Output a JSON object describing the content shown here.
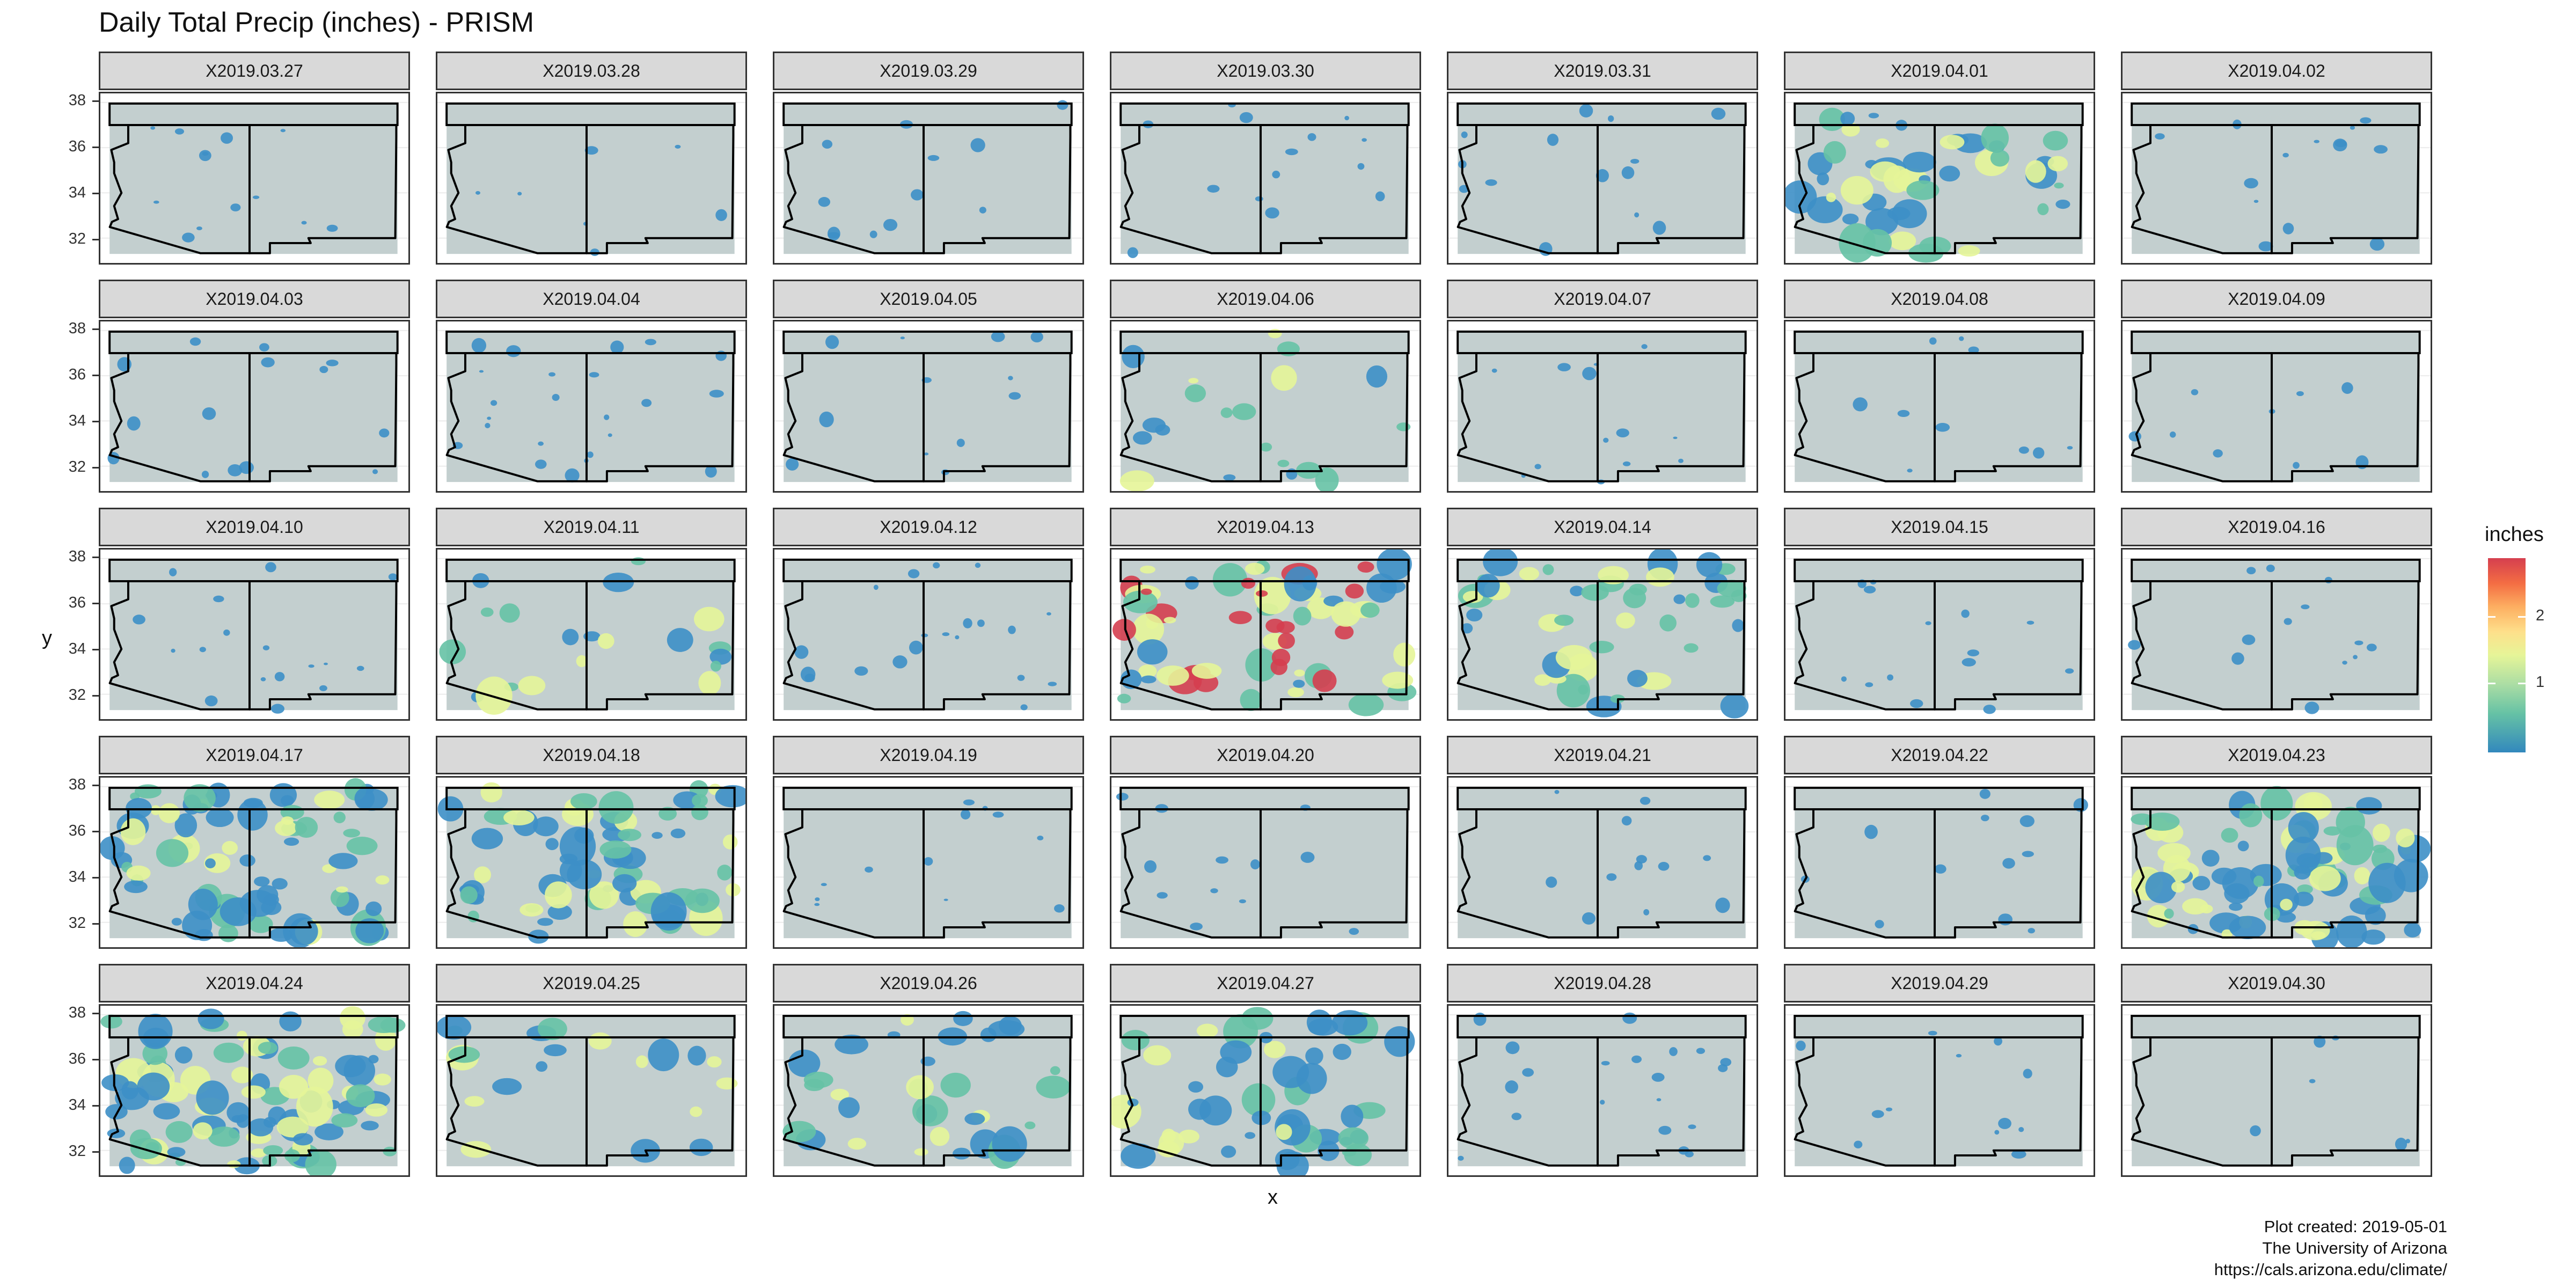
{
  "title": "Daily Total Precip (inches) - PRISM",
  "axes": {
    "xlabel": "x",
    "ylabel": "y",
    "y_ticks": [
      "38",
      "36",
      "34",
      "32"
    ]
  },
  "legend": {
    "title": "inches",
    "ticks": [
      "2",
      "1"
    ]
  },
  "caption": {
    "line1": "Plot created: 2019-05-01",
    "line2": "The University of Arizona",
    "line3": "https://cals.arizona.edu/climate/"
  },
  "colors": {
    "background_fill": "#c3cfcf",
    "light_precip": "#3d8fc6",
    "medium_precip": "#66c2a5",
    "heavy_precip": "#e6f598",
    "peak_precip": "#d53e4f",
    "state_outline": "#000000"
  },
  "chart_data": {
    "type": "heatmap",
    "title": "Daily Total Precip (inches) - PRISM",
    "xlabel": "x",
    "ylabel": "y",
    "ylim": [
      31,
      38
    ],
    "grid": true,
    "legend_placement": "right",
    "colorbar": {
      "title": "inches",
      "range": [
        0,
        2.8
      ],
      "ticks": [
        1,
        2
      ],
      "palette": "Spectral"
    },
    "facets": [
      {
        "label": "X2019.03.27",
        "intensity": "light",
        "coverage": 0.05
      },
      {
        "label": "X2019.03.28",
        "intensity": "light",
        "coverage": 0.01
      },
      {
        "label": "X2019.03.29",
        "intensity": "light",
        "coverage": 0.04
      },
      {
        "label": "X2019.03.30",
        "intensity": "light",
        "coverage": 0.06
      },
      {
        "label": "X2019.03.31",
        "intensity": "light",
        "coverage": 0.06
      },
      {
        "label": "X2019.04.01",
        "intensity": "moderate",
        "coverage": 0.3
      },
      {
        "label": "X2019.04.02",
        "intensity": "light",
        "coverage": 0.06
      },
      {
        "label": "X2019.04.03",
        "intensity": "light",
        "coverage": 0.06
      },
      {
        "label": "X2019.04.04",
        "intensity": "light",
        "coverage": 0.12
      },
      {
        "label": "X2019.04.05",
        "intensity": "light",
        "coverage": 0.04
      },
      {
        "label": "X2019.04.06",
        "intensity": "moderate",
        "coverage": 0.1
      },
      {
        "label": "X2019.04.07",
        "intensity": "light",
        "coverage": 0.05
      },
      {
        "label": "X2019.04.08",
        "intensity": "light",
        "coverage": 0.03
      },
      {
        "label": "X2019.04.09",
        "intensity": "light",
        "coverage": 0.02
      },
      {
        "label": "X2019.04.10",
        "intensity": "light",
        "coverage": 0.08
      },
      {
        "label": "X2019.04.11",
        "intensity": "moderate",
        "coverage": 0.1
      },
      {
        "label": "X2019.04.12",
        "intensity": "light",
        "coverage": 0.1
      },
      {
        "label": "X2019.04.13",
        "intensity": "heavy",
        "coverage": 0.4
      },
      {
        "label": "X2019.04.14",
        "intensity": "moderate",
        "coverage": 0.28
      },
      {
        "label": "X2019.04.15",
        "intensity": "light",
        "coverage": 0.06
      },
      {
        "label": "X2019.04.16",
        "intensity": "light",
        "coverage": 0.05
      },
      {
        "label": "X2019.04.17",
        "intensity": "moderate",
        "coverage": 0.5
      },
      {
        "label": "X2019.04.18",
        "intensity": "moderate",
        "coverage": 0.45
      },
      {
        "label": "X2019.04.19",
        "intensity": "light",
        "coverage": 0.04
      },
      {
        "label": "X2019.04.20",
        "intensity": "light",
        "coverage": 0.04
      },
      {
        "label": "X2019.04.21",
        "intensity": "light",
        "coverage": 0.04
      },
      {
        "label": "X2019.04.22",
        "intensity": "light",
        "coverage": 0.04
      },
      {
        "label": "X2019.04.23",
        "intensity": "moderate",
        "coverage": 0.55
      },
      {
        "label": "X2019.04.24",
        "intensity": "moderate",
        "coverage": 0.6
      },
      {
        "label": "X2019.04.25",
        "intensity": "moderate",
        "coverage": 0.1
      },
      {
        "label": "X2019.04.26",
        "intensity": "moderate",
        "coverage": 0.2
      },
      {
        "label": "X2019.04.27",
        "intensity": "moderate",
        "coverage": 0.3
      },
      {
        "label": "X2019.04.28",
        "intensity": "light",
        "coverage": 0.1
      },
      {
        "label": "X2019.04.29",
        "intensity": "light",
        "coverage": 0.04
      },
      {
        "label": "X2019.04.30",
        "intensity": "light",
        "coverage": 0.0
      }
    ]
  }
}
